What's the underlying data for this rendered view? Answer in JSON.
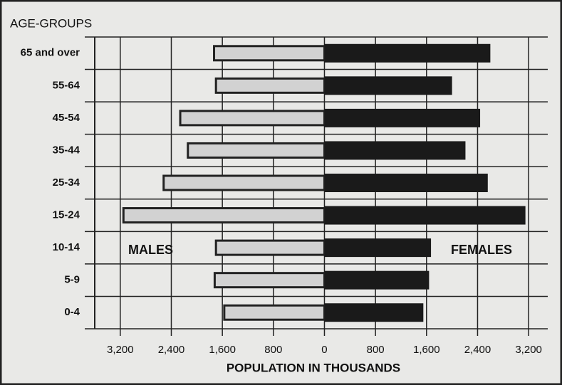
{
  "chart_data": {
    "type": "pyramid",
    "ylabel": "AGE-GROUPS",
    "xlabel": "POPULATION IN THOUSANDS",
    "categories": [
      "65 and over",
      "55-64",
      "45-54",
      "35-44",
      "25-34",
      "15-24",
      "10-14",
      "5-9",
      "0-4"
    ],
    "series": [
      {
        "name": "MALES",
        "side": "left",
        "color": "#d2d2d2",
        "values": [
          1730,
          1700,
          2260,
          2140,
          2520,
          3150,
          1700,
          1720,
          1570
        ]
      },
      {
        "name": "FEMALES",
        "side": "right",
        "color": "#1a1a1a",
        "values": [
          2600,
          2000,
          2440,
          2210,
          2560,
          3150,
          1670,
          1640,
          1550
        ]
      }
    ],
    "xlim": [
      -3600,
      3500
    ],
    "xticks": [
      {
        "value": -3200,
        "label": "3,200"
      },
      {
        "value": -2400,
        "label": "2,400"
      },
      {
        "value": -1600,
        "label": "1,600"
      },
      {
        "value": -800,
        "label": "800"
      },
      0,
      800,
      {
        "value": 1600,
        "label": "1,600"
      },
      {
        "value": 2400,
        "label": "2,400"
      },
      {
        "value": 3200,
        "label": "3,200"
      }
    ],
    "grid": true
  }
}
